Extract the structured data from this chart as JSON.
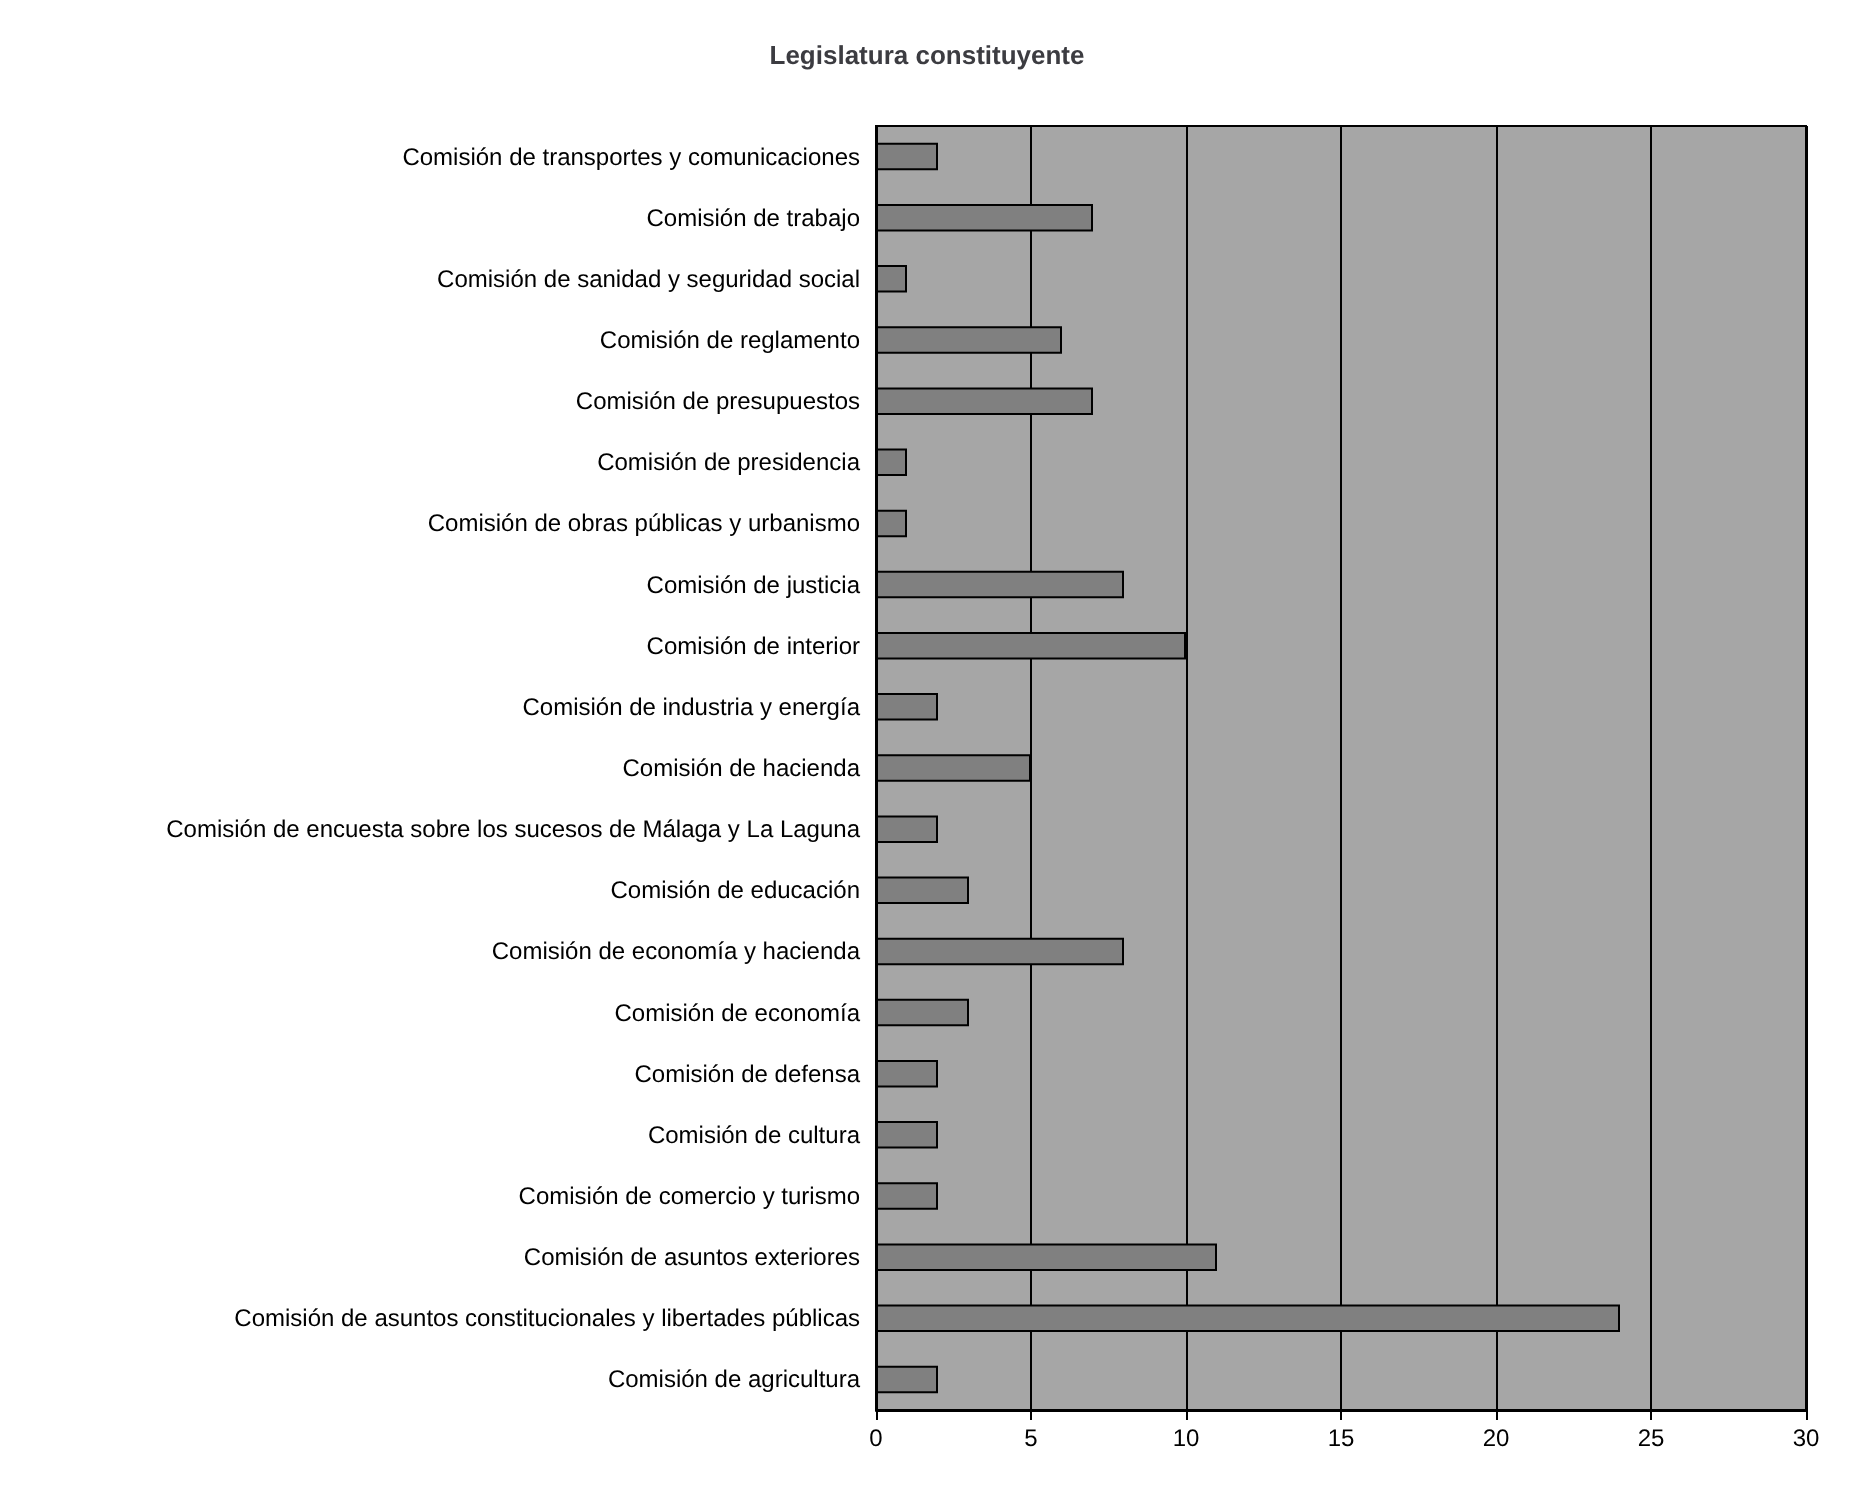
{
  "chart_data": {
    "type": "bar",
    "orientation": "horizontal",
    "title": "Legislatura constituyente",
    "categories": [
      "Comisión de transportes y comunicaciones",
      "Comisión de trabajo",
      "Comisión de sanidad y seguridad social",
      "Comisión de reglamento",
      "Comisión de presupuestos",
      "Comisión de presidencia",
      "Comisión de obras públicas y urbanismo",
      "Comisión de justicia",
      "Comisión de interior",
      "Comisión de industria y energía",
      "Comisión de hacienda",
      "Comisión de encuesta sobre los sucesos de Málaga y La Laguna",
      "Comisión de educación",
      "Comisión de economía y hacienda",
      "Comisión de economía",
      "Comisión de defensa",
      "Comisión de cultura",
      "Comisión de comercio y turismo",
      "Comisión de asuntos exteriores",
      "Comisión de asuntos constitucionales y libertades públicas",
      "Comisión de agricultura"
    ],
    "values": [
      2,
      7,
      1,
      6,
      7,
      1,
      1,
      8,
      10,
      2,
      5,
      2,
      3,
      8,
      3,
      2,
      2,
      2,
      11,
      24,
      2
    ],
    "color": "#808080",
    "xlim": [
      0,
      30
    ],
    "xticks": [
      0,
      5,
      10,
      15,
      20,
      25,
      30
    ],
    "grid": "x"
  }
}
